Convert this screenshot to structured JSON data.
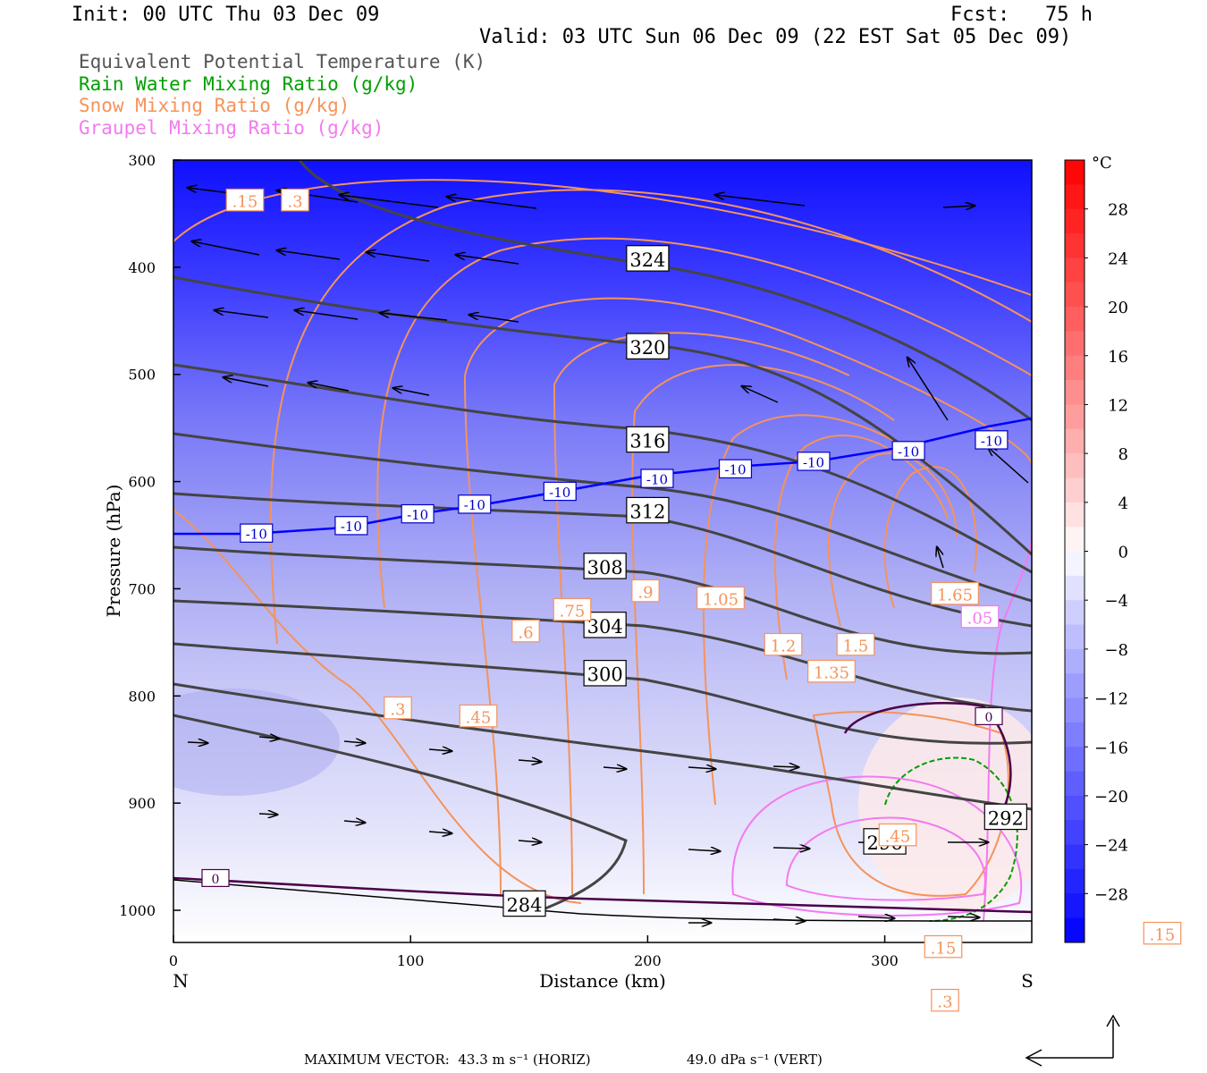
{
  "header": {
    "init": "Init: 00 UTC Thu 03 Dec 09",
    "fcst": "Fcst:   75 h",
    "valid": "Valid: 03 UTC Sun 06 Dec 09 (22 EST Sat 05 Dec 09)"
  },
  "legend": [
    {
      "label": "Equivalent Potential Temperature (K)",
      "color": "#555555"
    },
    {
      "label": "Rain Water Mixing Ratio (g/kg)",
      "color": "#00a000"
    },
    {
      "label": "Snow Mixing Ratio (g/kg)",
      "color": "#f5935a"
    },
    {
      "label": "Graupel Mixing Ratio (g/kg)",
      "color": "#f37af0"
    }
  ],
  "footer": {
    "max_horiz": "MAXIMUM VECTOR:  43.3 m s⁻¹ (HORIZ)",
    "max_vert": "49.0 dPa s⁻¹ (VERT)"
  },
  "chart_data": {
    "type": "contour",
    "xlabel": "Distance (km)",
    "ylabel": "Pressure (hPa)",
    "x_ticks": [
      0,
      100,
      200,
      300
    ],
    "x_range": [
      0,
      362
    ],
    "y_ticks": [
      300,
      400,
      500,
      600,
      700,
      800,
      900,
      1000
    ],
    "y_range": [
      300,
      1030
    ],
    "x_end_labels": {
      "left": "N",
      "right": "S"
    },
    "colorbar": {
      "unit": "°C",
      "ticks": [
        28,
        24,
        20,
        16,
        12,
        8,
        4,
        0,
        -4,
        -8,
        -12,
        -16,
        -20,
        -24,
        -28
      ],
      "range": [
        -32,
        32
      ],
      "colors": {
        "cold": "#0000ff",
        "neutral": "#ffffff",
        "warm": "#ff0000"
      }
    },
    "theta_e_labels": [
      {
        "value": "324",
        "x": 200,
        "p": 393
      },
      {
        "value": "320",
        "x": 200,
        "p": 475
      },
      {
        "value": "316",
        "x": 200,
        "p": 562
      },
      {
        "value": "312",
        "x": 200,
        "p": 628
      },
      {
        "value": "308",
        "x": 182,
        "p": 680
      },
      {
        "value": "304",
        "x": 182,
        "p": 735
      },
      {
        "value": "300",
        "x": 182,
        "p": 780
      },
      {
        "value": "296",
        "x": 300,
        "p": 937
      },
      {
        "value": "292",
        "x": 351,
        "p": 914
      },
      {
        "value": "284",
        "x": 148,
        "p": 995
      }
    ],
    "temp_minus10_line": {
      "label": "-10",
      "points": [
        [
          0,
          650
        ],
        [
          35,
          649
        ],
        [
          75,
          642
        ],
        [
          103,
          631
        ],
        [
          127,
          622
        ],
        [
          163,
          610
        ],
        [
          204,
          598
        ],
        [
          237,
          589
        ],
        [
          270,
          582
        ],
        [
          310,
          572
        ],
        [
          345,
          562
        ],
        [
          362,
          550
        ]
      ]
    },
    "temp_zero_label": "0",
    "snow_labels": [
      ".15",
      ".3",
      ".15",
      ".15",
      ".3",
      ".45",
      ".6",
      ".75",
      ".9",
      "1.05",
      "1.2",
      "1.5",
      "1.35",
      "1.65",
      ".45",
      ".3"
    ],
    "graupel_labels": [
      ".05"
    ]
  }
}
